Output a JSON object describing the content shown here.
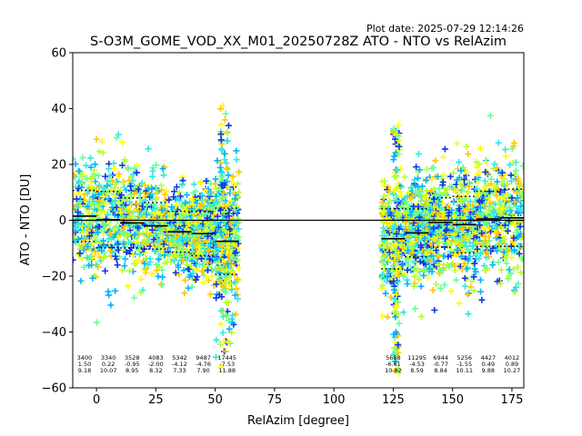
{
  "chart_data": {
    "type": "scatter",
    "plot_date": "Plot date: 2025-07-29 12:14:26",
    "title": "S-O3M_GOME_VOD_XX_M01_20250728Z ATO - NTO vs RelAzim",
    "xlabel": "RelAzim [degree]",
    "ylabel": "ATO - NTO [DU]",
    "xlim": [
      -10,
      180
    ],
    "ylim": [
      -60,
      60
    ],
    "xticks": [
      0,
      25,
      50,
      75,
      100,
      125,
      150,
      175
    ],
    "yticks": [
      -60,
      -40,
      -20,
      0,
      20,
      40,
      60
    ],
    "grid": false,
    "marker": "+",
    "point_color_scale": [
      "#1436e6",
      "#00b4ff",
      "#33e6e6",
      "#66ff99",
      "#b3ff33",
      "#ffff00",
      "#ffc800"
    ],
    "zero_line": 0,
    "bins": [
      {
        "x0": -10,
        "x1": 0,
        "count": "3400",
        "mean": "1.50",
        "std": "9.18",
        "mean_value": 1.5,
        "std_value": 9.18
      },
      {
        "x0": 0,
        "x1": 10,
        "count": "3340",
        "mean": "0.22",
        "std": "10.07",
        "mean_value": 0.22,
        "std_value": 10.07
      },
      {
        "x0": 10,
        "x1": 20,
        "count": "3528",
        "mean": "-0.95",
        "std": "8.95",
        "mean_value": -0.95,
        "std_value": 8.95
      },
      {
        "x0": 20,
        "x1": 30,
        "count": "4083",
        "mean": "-2.00",
        "std": "8.32",
        "mean_value": -2.0,
        "std_value": 8.32
      },
      {
        "x0": 30,
        "x1": 40,
        "count": "5342",
        "mean": "-4.12",
        "std": "7.33",
        "mean_value": -4.12,
        "std_value": 7.33
      },
      {
        "x0": 40,
        "x1": 50,
        "count": "9487",
        "mean": "-4.76",
        "std": "7.90",
        "mean_value": -4.76,
        "std_value": 7.9
      },
      {
        "x0": 50,
        "x1": 60,
        "count": "17445",
        "mean": "-7.53",
        "std": "11.88",
        "mean_value": -7.53,
        "std_value": 11.88
      },
      {
        "x0": 120,
        "x1": 130,
        "count": "5688",
        "mean": "-6.61",
        "std": "10.82",
        "mean_value": -6.61,
        "std_value": 10.82
      },
      {
        "x0": 130,
        "x1": 140,
        "count": "11295",
        "mean": "-4.53",
        "std": "8.59",
        "mean_value": -4.53,
        "std_value": 8.59
      },
      {
        "x0": 140,
        "x1": 150,
        "count": "6944",
        "mean": "-0.77",
        "std": "8.84",
        "mean_value": -0.77,
        "std_value": 8.84
      },
      {
        "x0": 150,
        "x1": 160,
        "count": "5256",
        "mean": "-1.55",
        "std": "10.11",
        "mean_value": -1.55,
        "std_value": 10.11
      },
      {
        "x0": 160,
        "x1": 170,
        "count": "4427",
        "mean": "0.49",
        "std": "9.88",
        "mean_value": 0.49,
        "std_value": 9.88
      },
      {
        "x0": 170,
        "x1": 180,
        "count": "4012",
        "mean": "0.89",
        "std": "10.27",
        "mean_value": 0.89,
        "std_value": 10.27
      }
    ],
    "scatter_segments": [
      {
        "x_range": [
          -10,
          56
        ],
        "y_range": [
          -30,
          52
        ]
      },
      {
        "x_range": [
          125,
          180
        ],
        "y_range": [
          -58,
          43
        ]
      }
    ]
  }
}
